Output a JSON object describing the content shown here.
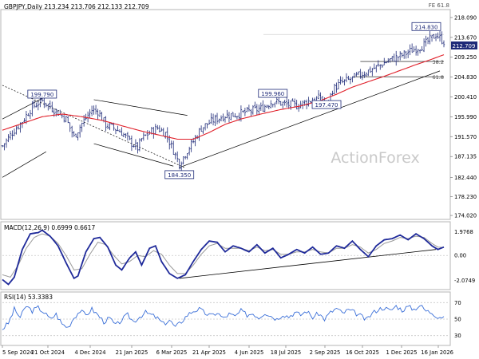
{
  "header": {
    "symbol_line": "GBPJPY,Daily  213.234 213.706 212.133 212.709",
    "fe_label": "FE 61.8",
    "last_price": "212.709",
    "watermark": "ActionForex"
  },
  "colors": {
    "price_bars": "#1e2a78",
    "ma_line": "#e0202a",
    "macd_line": "#1f2a9a",
    "signal_line": "#9a9a9a",
    "rsi_line": "#3a6fd8",
    "trendline": "#000000",
    "label_box": "#1e2a78"
  },
  "chart_data": [
    {
      "type": "candlestick",
      "panel": "price",
      "title": "GBPJPY,Daily",
      "ohlc_latest": {
        "open": 213.234,
        "high": 213.706,
        "low": 212.133,
        "close": 212.709
      },
      "ylim": [
        173.5,
        219.5
      ],
      "yticks": [
        174.02,
        178.23,
        182.44,
        187.135,
        191.57,
        195.99,
        200.41,
        204.83,
        209.25,
        213.67,
        218.09
      ],
      "ytick_labels": [
        "174.020",
        "178.230",
        "182.440",
        "187.135",
        "191.570",
        "195.990",
        "200.410",
        "204.830",
        "209.250",
        "213.670",
        "218.090"
      ],
      "xtick_labels": [
        "5 Sep 2024",
        "21 Oct 2024",
        "4 Dec 2024",
        "21 Jan 2025",
        "6 Mar 2025",
        "21 Apr 2025",
        "4 Jun 2025",
        "18 Jul 2025",
        "2 Sep 2025",
        "16 Oct 2025",
        "1 Dec 2025",
        "16 Jan 2026"
      ],
      "annotations": [
        {
          "label": "199.790",
          "index": 20,
          "price": 199.79
        },
        {
          "label": "184.350",
          "index": 89,
          "price": 184.35
        },
        {
          "label": "199.960",
          "index": 136,
          "price": 199.96
        },
        {
          "label": "197.470",
          "index": 163,
          "price": 197.47
        },
        {
          "label": "214.830",
          "index": 218,
          "price": 214.83
        }
      ],
      "fib_levels": [
        {
          "label": "38.2",
          "price": 208.3
        },
        {
          "label": "61.8",
          "price": 204.9
        }
      ],
      "close_path": [
        [
          0,
          189.5
        ],
        [
          5,
          192.5
        ],
        [
          10,
          195.0
        ],
        [
          15,
          198.2
        ],
        [
          20,
          199.6
        ],
        [
          26,
          197.6
        ],
        [
          32,
          195.5
        ],
        [
          36,
          191.5
        ],
        [
          40,
          194.5
        ],
        [
          45,
          197.5
        ],
        [
          48,
          197.2
        ],
        [
          52,
          194.2
        ],
        [
          56,
          193.5
        ],
        [
          60,
          192.5
        ],
        [
          64,
          190.5
        ],
        [
          68,
          189.0
        ],
        [
          70,
          191.0
        ],
        [
          74,
          192.5
        ],
        [
          78,
          193.5
        ],
        [
          82,
          192.3
        ],
        [
          86,
          188.5
        ],
        [
          89,
          185.5
        ],
        [
          92,
          187.8
        ],
        [
          96,
          190.5
        ],
        [
          100,
          193.5
        ],
        [
          106,
          195.2
        ],
        [
          112,
          196.3
        ],
        [
          118,
          196.5
        ],
        [
          124,
          197.2
        ],
        [
          130,
          197.8
        ],
        [
          136,
          199.5
        ],
        [
          142,
          198.8
        ],
        [
          148,
          198.5
        ],
        [
          154,
          199.5
        ],
        [
          160,
          200.3
        ],
        [
          163,
          198.2
        ],
        [
          166,
          202.0
        ],
        [
          170,
          203.5
        ],
        [
          176,
          204.5
        ],
        [
          182,
          205.8
        ],
        [
          188,
          207.0
        ],
        [
          194,
          208.5
        ],
        [
          200,
          209.5
        ],
        [
          206,
          210.8
        ],
        [
          212,
          212.0
        ],
        [
          216,
          213.5
        ],
        [
          218,
          214.3
        ],
        [
          222,
          212.7
        ]
      ],
      "ma_path": [
        [
          0,
          193.0
        ],
        [
          10,
          194.5
        ],
        [
          20,
          196.0
        ],
        [
          30,
          196.6
        ],
        [
          40,
          196.0
        ],
        [
          50,
          195.2
        ],
        [
          60,
          194.0
        ],
        [
          70,
          192.8
        ],
        [
          80,
          191.8
        ],
        [
          88,
          191.0
        ],
        [
          96,
          191.0
        ],
        [
          104,
          192.5
        ],
        [
          112,
          194.3
        ],
        [
          120,
          195.5
        ],
        [
          130,
          196.6
        ],
        [
          140,
          197.6
        ],
        [
          150,
          198.4
        ],
        [
          160,
          199.6
        ],
        [
          168,
          201.0
        ],
        [
          176,
          202.6
        ],
        [
          184,
          203.8
        ],
        [
          192,
          205.0
        ],
        [
          200,
          206.3
        ],
        [
          208,
          207.6
        ],
        [
          214,
          208.5
        ],
        [
          222,
          209.8
        ]
      ]
    },
    {
      "type": "line",
      "panel": "macd",
      "title": "MACD(12,26,9) 0.6999 0.6617",
      "ylim": [
        -2.7,
        2.6
      ],
      "yticks": [
        1.9768,
        0.0,
        -2.0749
      ],
      "ytick_labels": [
        "1.9768",
        "0.00",
        "-2.0749"
      ],
      "series": [
        {
          "name": "MACD",
          "points": [
            [
              0,
              -2.0
            ],
            [
              3,
              -2.4
            ],
            [
              6,
              -1.8
            ],
            [
              10,
              0.5
            ],
            [
              14,
              1.8
            ],
            [
              18,
              1.9
            ],
            [
              20,
              2.1
            ],
            [
              24,
              1.6
            ],
            [
              28,
              0.8
            ],
            [
              32,
              -0.6
            ],
            [
              36,
              -1.9
            ],
            [
              38,
              -1.7
            ],
            [
              42,
              0.3
            ],
            [
              46,
              1.4
            ],
            [
              49,
              1.5
            ],
            [
              53,
              0.7
            ],
            [
              57,
              -0.8
            ],
            [
              60,
              -1.2
            ],
            [
              64,
              -0.2
            ],
            [
              67,
              0.3
            ],
            [
              70,
              -0.8
            ],
            [
              74,
              0.6
            ],
            [
              77,
              0.8
            ],
            [
              80,
              -0.5
            ],
            [
              84,
              -1.5
            ],
            [
              88,
              -1.9
            ],
            [
              92,
              -1.6
            ],
            [
              96,
              -0.5
            ],
            [
              100,
              0.5
            ],
            [
              104,
              1.2
            ],
            [
              108,
              1.1
            ],
            [
              112,
              0.3
            ],
            [
              116,
              0.8
            ],
            [
              120,
              0.6
            ],
            [
              124,
              0.3
            ],
            [
              128,
              0.9
            ],
            [
              132,
              0.2
            ],
            [
              136,
              0.6
            ],
            [
              140,
              -0.2
            ],
            [
              144,
              0.1
            ],
            [
              148,
              0.5
            ],
            [
              152,
              0.2
            ],
            [
              156,
              0.7
            ],
            [
              160,
              0.1
            ],
            [
              164,
              0.2
            ],
            [
              168,
              0.8
            ],
            [
              172,
              0.6
            ],
            [
              176,
              1.2
            ],
            [
              180,
              0.5
            ],
            [
              184,
              -0.1
            ],
            [
              188,
              0.8
            ],
            [
              192,
              1.3
            ],
            [
              196,
              1.4
            ],
            [
              200,
              1.7
            ],
            [
              204,
              1.3
            ],
            [
              208,
              1.8
            ],
            [
              212,
              1.4
            ],
            [
              216,
              0.8
            ],
            [
              219,
              0.5
            ],
            [
              222,
              0.7
            ]
          ]
        },
        {
          "name": "Signal",
          "points": [
            [
              0,
              -1.6
            ],
            [
              4,
              -1.8
            ],
            [
              8,
              -0.8
            ],
            [
              12,
              0.6
            ],
            [
              16,
              1.5
            ],
            [
              20,
              1.8
            ],
            [
              24,
              1.6
            ],
            [
              28,
              1.0
            ],
            [
              32,
              0.0
            ],
            [
              36,
              -1.2
            ],
            [
              40,
              -1.1
            ],
            [
              44,
              0.1
            ],
            [
              48,
              1.1
            ],
            [
              52,
              0.9
            ],
            [
              56,
              0.0
            ],
            [
              60,
              -0.7
            ],
            [
              64,
              -0.5
            ],
            [
              68,
              0.0
            ],
            [
              72,
              -0.1
            ],
            [
              76,
              0.4
            ],
            [
              80,
              0.1
            ],
            [
              84,
              -0.8
            ],
            [
              88,
              -1.5
            ],
            [
              92,
              -1.5
            ],
            [
              96,
              -0.8
            ],
            [
              100,
              0.1
            ],
            [
              104,
              0.8
            ],
            [
              108,
              1.0
            ],
            [
              112,
              0.6
            ],
            [
              116,
              0.6
            ],
            [
              120,
              0.6
            ],
            [
              124,
              0.4
            ],
            [
              128,
              0.7
            ],
            [
              132,
              0.4
            ],
            [
              136,
              0.5
            ],
            [
              140,
              0.1
            ],
            [
              144,
              0.1
            ],
            [
              148,
              0.3
            ],
            [
              152,
              0.3
            ],
            [
              156,
              0.5
            ],
            [
              160,
              0.3
            ],
            [
              164,
              0.2
            ],
            [
              168,
              0.6
            ],
            [
              172,
              0.6
            ],
            [
              176,
              0.9
            ],
            [
              180,
              0.7
            ],
            [
              184,
              0.2
            ],
            [
              188,
              0.5
            ],
            [
              192,
              1.0
            ],
            [
              196,
              1.2
            ],
            [
              200,
              1.5
            ],
            [
              204,
              1.4
            ],
            [
              208,
              1.6
            ],
            [
              212,
              1.5
            ],
            [
              216,
              1.0
            ],
            [
              219,
              0.7
            ],
            [
              222,
              0.66
            ]
          ]
        }
      ]
    },
    {
      "type": "line",
      "panel": "rsi",
      "title": "RSI(14) 53.3383",
      "ylim": [
        20,
        80
      ],
      "yticks": [
        70,
        50,
        30
      ],
      "ytick_labels": [
        "70",
        "50",
        "30"
      ],
      "series": [
        {
          "name": "RSI(14)",
          "points": [
            [
              0,
              38
            ],
            [
              3,
              45
            ],
            [
              6,
              62
            ],
            [
              9,
              52
            ],
            [
              12,
              66
            ],
            [
              15,
              60
            ],
            [
              18,
              64
            ],
            [
              21,
              58
            ],
            [
              24,
              50
            ],
            [
              27,
              56
            ],
            [
              30,
              44
            ],
            [
              33,
              40
            ],
            [
              36,
              52
            ],
            [
              39,
              60
            ],
            [
              42,
              55
            ],
            [
              45,
              62
            ],
            [
              48,
              55
            ],
            [
              51,
              47
            ],
            [
              54,
              51
            ],
            [
              57,
              42
            ],
            [
              60,
              49
            ],
            [
              63,
              55
            ],
            [
              66,
              47
            ],
            [
              69,
              53
            ],
            [
              72,
              58
            ],
            [
              75,
              55
            ],
            [
              78,
              51
            ],
            [
              81,
              44
            ],
            [
              84,
              49
            ],
            [
              87,
              40
            ],
            [
              90,
              47
            ],
            [
              93,
              55
            ],
            [
              96,
              60
            ],
            [
              99,
              62
            ],
            [
              102,
              57
            ],
            [
              105,
              54
            ],
            [
              108,
              58
            ],
            [
              111,
              51
            ],
            [
              114,
              56
            ],
            [
              117,
              53
            ],
            [
              120,
              60
            ],
            [
              123,
              55
            ],
            [
              126,
              57
            ],
            [
              129,
              52
            ],
            [
              132,
              58
            ],
            [
              135,
              54
            ],
            [
              138,
              50
            ],
            [
              141,
              56
            ],
            [
              144,
              53
            ],
            [
              147,
              58
            ],
            [
              150,
              55
            ],
            [
              153,
              60
            ],
            [
              156,
              52
            ],
            [
              159,
              57
            ],
            [
              162,
              50
            ],
            [
              165,
              58
            ],
            [
              168,
              63
            ],
            [
              171,
              57
            ],
            [
              174,
              61
            ],
            [
              177,
              58
            ],
            [
              180,
              54
            ],
            [
              183,
              49
            ],
            [
              186,
              57
            ],
            [
              189,
              62
            ],
            [
              192,
              64
            ],
            [
              195,
              60
            ],
            [
              198,
              66
            ],
            [
              201,
              61
            ],
            [
              204,
              65
            ],
            [
              207,
              62
            ],
            [
              210,
              67
            ],
            [
              213,
              60
            ],
            [
              216,
              58
            ],
            [
              219,
              53
            ],
            [
              222,
              53
            ]
          ]
        }
      ]
    }
  ]
}
